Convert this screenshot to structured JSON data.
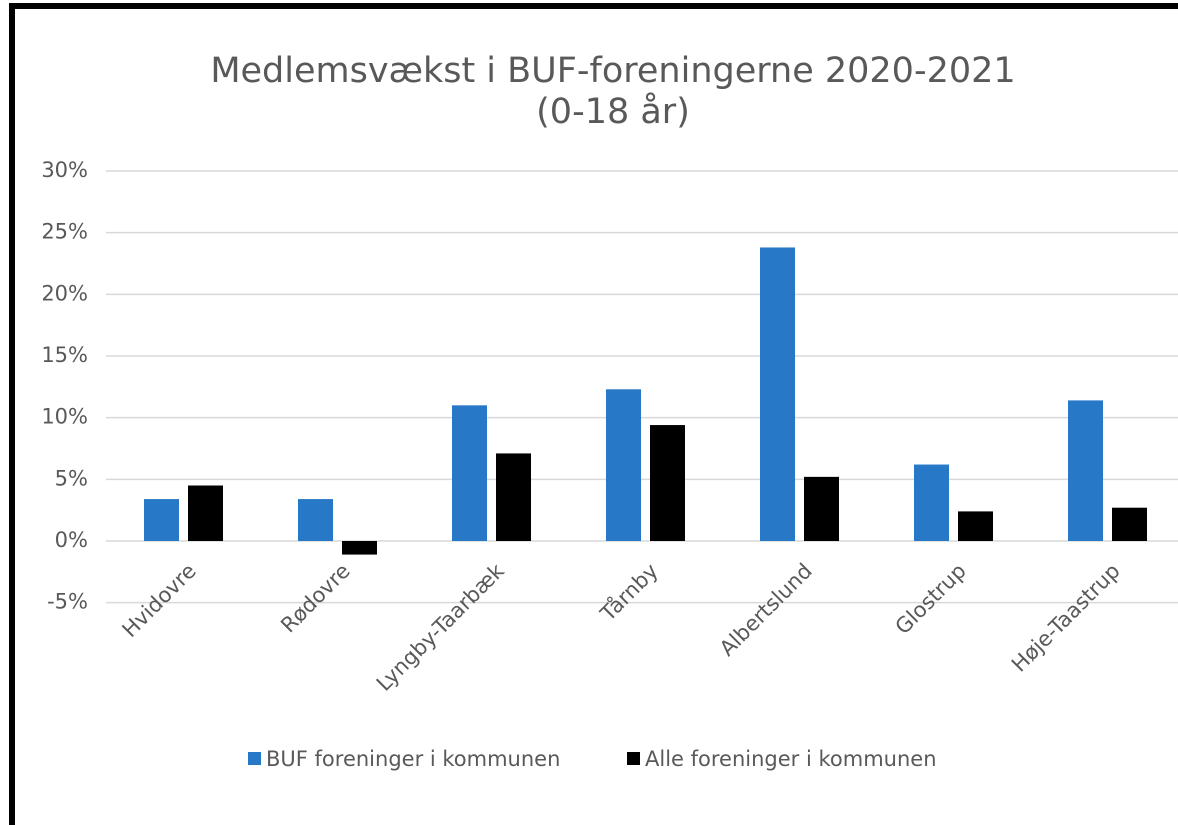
{
  "chart_data": {
    "type": "bar",
    "title": [
      "Medlemsvækst i BUF-foreningerne 2020-2021",
      "(0-18 år)"
    ],
    "categories": [
      "Hvidovre",
      "Rødovre",
      "Lyngby-Taarbæk",
      "Tårnby",
      "Albertslund",
      "Glostrup",
      "Høje-Taastrup"
    ],
    "series": [
      {
        "name": "BUF foreninger i kommunen",
        "color": "#2878c8",
        "values": [
          3.4,
          3.4,
          11.0,
          12.3,
          23.8,
          6.2,
          11.4
        ]
      },
      {
        "name": "Alle foreninger i kommunen",
        "color": "#000000",
        "values": [
          4.5,
          -1.1,
          7.1,
          9.4,
          5.2,
          2.4,
          2.7
        ]
      }
    ],
    "ylim": [
      -5,
      30
    ],
    "yticks": [
      {
        "value": -5,
        "label": "-5%"
      },
      {
        "value": 0,
        "label": "0%"
      },
      {
        "value": 5,
        "label": "5%"
      },
      {
        "value": 10,
        "label": "10%"
      },
      {
        "value": 15,
        "label": "15%"
      },
      {
        "value": 20,
        "label": "20%"
      },
      {
        "value": 25,
        "label": "25%"
      },
      {
        "value": 30,
        "label": "30%"
      }
    ],
    "grid": true,
    "legend": "bottom"
  }
}
